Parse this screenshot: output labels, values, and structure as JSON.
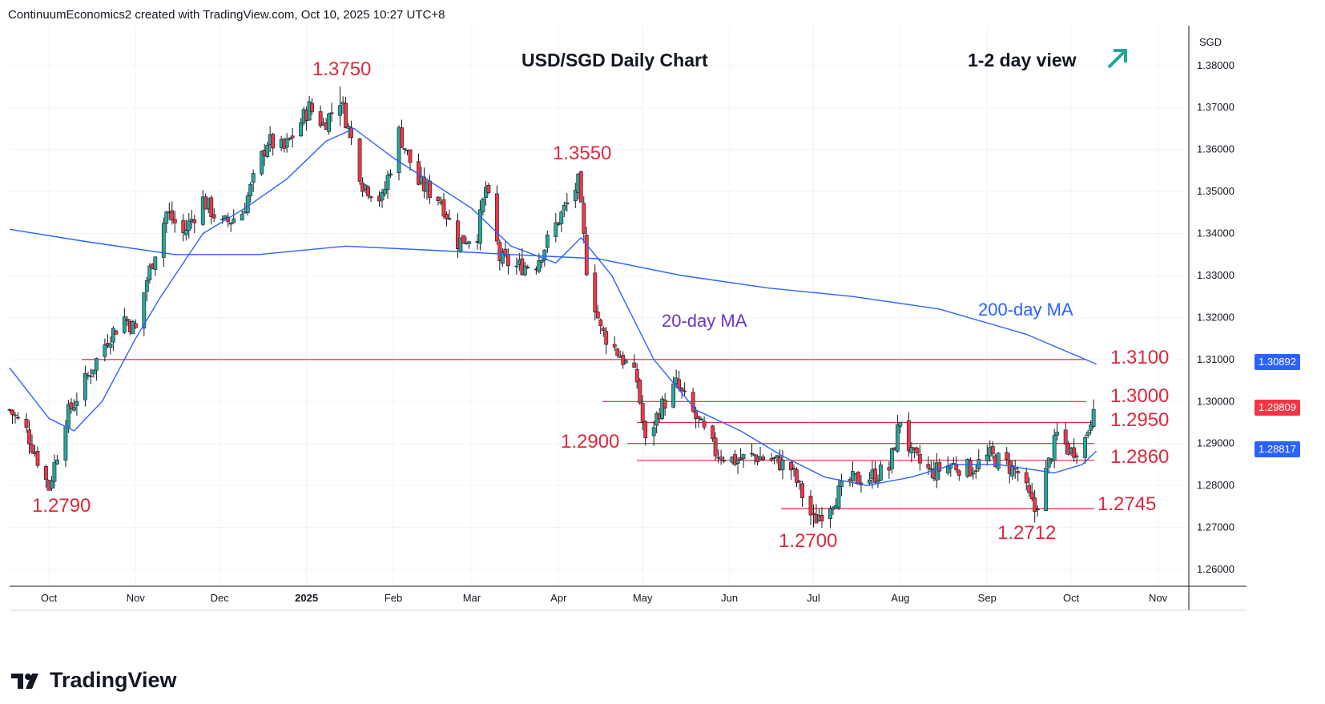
{
  "header": {
    "text": "ContinuumEconomics2 created with TradingView.com, Oct 10, 2025 10:27 UTC+8"
  },
  "chart_title": "USD/SGD Daily Chart",
  "view": {
    "label": "1-2 day view",
    "arrow_icon": "up-right-arrow-icon",
    "arrow_color": "#26a69a"
  },
  "axis": {
    "currency": "SGD",
    "y_ticks": [
      "1.38000",
      "1.37000",
      "1.36000",
      "1.35000",
      "1.34000",
      "1.33000",
      "1.32000",
      "1.31000",
      "1.30000",
      "1.29000",
      "1.28000",
      "1.27000",
      "1.26000"
    ],
    "x_ticks": [
      "Oct",
      "Nov",
      "Dec",
      "2025",
      "Feb",
      "Mar",
      "Apr",
      "May",
      "Jun",
      "Jul",
      "Aug",
      "Sep",
      "Oct",
      "Nov"
    ]
  },
  "price_boxes": {
    "ma200": {
      "text": "1.30892",
      "color": "#2962ff"
    },
    "last": {
      "text": "1.29809",
      "color": "#f23645"
    },
    "ma20": {
      "text": "1.28817",
      "color": "#2962ff"
    }
  },
  "annotations": {
    "high_1": "1.3750",
    "high_2": "1.3550",
    "low_1": "1.2790",
    "level_1290": "1.2900",
    "low_2": "1.2700",
    "low_3": "1.2712",
    "level_13100": "1.3100",
    "level_13000": "1.3000",
    "level_12950": "1.2950",
    "level_12860": "1.2860",
    "level_12745": "1.2745",
    "ma20_label": "20-day MA",
    "ma200_label": "200-day MA"
  },
  "footer": {
    "logo_icon": "tradingview-logo-icon",
    "brand": "TradingView"
  },
  "colors": {
    "up": "#26a69a",
    "down": "#f23645",
    "line": "#e0283c",
    "ma": "#2962ff"
  },
  "chart_data": {
    "type": "candlestick",
    "title": "USD/SGD Daily Chart",
    "ylabel": "SGD",
    "ylim": [
      1.256,
      1.3895
    ],
    "start_date": "2024-09-17",
    "x_range": [
      "2024-09-17",
      "2025-11-12"
    ],
    "horizontal_levels": [
      1.31,
      1.3,
      1.295,
      1.29,
      1.286,
      1.2745
    ],
    "last_price": 1.29809,
    "swing_points": [
      {
        "date": "2024-10-01",
        "value": 1.279
      },
      {
        "date": "2025-01-13",
        "value": 1.375
      },
      {
        "date": "2025-04-09",
        "value": 1.355
      },
      {
        "date": "2025-07-01",
        "value": 1.27
      },
      {
        "date": "2025-09-18",
        "value": 1.2712
      }
    ],
    "anchors": [
      [
        "2024-09-17",
        1.298
      ],
      [
        "2024-09-23",
        1.293
      ],
      [
        "2024-10-01",
        1.2795
      ],
      [
        "2024-10-07",
        1.296
      ],
      [
        "2024-10-15",
        1.306
      ],
      [
        "2024-10-22",
        1.315
      ],
      [
        "2024-10-28",
        1.32
      ],
      [
        "2024-11-01",
        1.317
      ],
      [
        "2024-11-05",
        1.329
      ],
      [
        "2024-11-12",
        1.345
      ],
      [
        "2024-11-18",
        1.34
      ],
      [
        "2024-11-25",
        1.348
      ],
      [
        "2024-12-02",
        1.342
      ],
      [
        "2024-12-09",
        1.345
      ],
      [
        "2024-12-18",
        1.362
      ],
      [
        "2024-12-24",
        1.36
      ],
      [
        "2025-01-02",
        1.37
      ],
      [
        "2025-01-07",
        1.366
      ],
      [
        "2025-01-13",
        1.372
      ],
      [
        "2025-01-16",
        1.365
      ],
      [
        "2025-01-21",
        1.352
      ],
      [
        "2025-01-28",
        1.348
      ],
      [
        "2025-02-03",
        1.364
      ],
      [
        "2025-02-10",
        1.352
      ],
      [
        "2025-02-18",
        1.348
      ],
      [
        "2025-02-24",
        1.338
      ],
      [
        "2025-03-03",
        1.34
      ],
      [
        "2025-03-06",
        1.351
      ],
      [
        "2025-03-11",
        1.334
      ],
      [
        "2025-03-17",
        1.332
      ],
      [
        "2025-03-24",
        1.333
      ],
      [
        "2025-03-31",
        1.342
      ],
      [
        "2025-04-08",
        1.352
      ],
      [
        "2025-04-11",
        1.332
      ],
      [
        "2025-04-16",
        1.317
      ],
      [
        "2025-04-23",
        1.311
      ],
      [
        "2025-04-29",
        1.305
      ],
      [
        "2025-05-02",
        1.29
      ],
      [
        "2025-05-07",
        1.298
      ],
      [
        "2025-05-13",
        1.304
      ],
      [
        "2025-05-20",
        1.296
      ],
      [
        "2025-05-27",
        1.288
      ],
      [
        "2025-06-03",
        1.286
      ],
      [
        "2025-06-10",
        1.287
      ],
      [
        "2025-06-17",
        1.286
      ],
      [
        "2025-06-23",
        1.284
      ],
      [
        "2025-07-01",
        1.2715
      ],
      [
        "2025-07-07",
        1.276
      ],
      [
        "2025-07-14",
        1.281
      ],
      [
        "2025-07-21",
        1.282
      ],
      [
        "2025-07-28",
        1.284
      ],
      [
        "2025-08-01",
        1.296
      ],
      [
        "2025-08-05",
        1.287
      ],
      [
        "2025-08-12",
        1.283
      ],
      [
        "2025-08-19",
        1.285
      ],
      [
        "2025-08-26",
        1.284
      ],
      [
        "2025-09-02",
        1.287
      ],
      [
        "2025-09-08",
        1.285
      ],
      [
        "2025-09-12",
        1.283
      ],
      [
        "2025-09-18",
        1.274
      ],
      [
        "2025-09-22",
        1.283
      ],
      [
        "2025-09-26",
        1.292
      ],
      [
        "2025-10-01",
        1.288
      ],
      [
        "2025-10-06",
        1.291
      ],
      [
        "2025-10-09",
        1.2985
      ]
    ],
    "ma20_points": [
      [
        "2024-09-17",
        1.308
      ],
      [
        "2024-10-01",
        1.296
      ],
      [
        "2024-10-10",
        1.293
      ],
      [
        "2024-10-20",
        1.3
      ],
      [
        "2024-11-01",
        1.315
      ],
      [
        "2024-11-10",
        1.325
      ],
      [
        "2024-11-25",
        1.34
      ],
      [
        "2024-12-10",
        1.346
      ],
      [
        "2024-12-25",
        1.353
      ],
      [
        "2025-01-08",
        1.362
      ],
      [
        "2025-01-18",
        1.365
      ],
      [
        "2025-02-01",
        1.358
      ],
      [
        "2025-02-15",
        1.352
      ],
      [
        "2025-03-01",
        1.346
      ],
      [
        "2025-03-15",
        1.337
      ],
      [
        "2025-03-31",
        1.333
      ],
      [
        "2025-04-09",
        1.339
      ],
      [
        "2025-04-20",
        1.33
      ],
      [
        "2025-05-05",
        1.31
      ],
      [
        "2025-05-20",
        1.298
      ],
      [
        "2025-06-05",
        1.293
      ],
      [
        "2025-06-20",
        1.287
      ],
      [
        "2025-07-05",
        1.282
      ],
      [
        "2025-07-20",
        1.28
      ],
      [
        "2025-08-05",
        1.282
      ],
      [
        "2025-08-20",
        1.285
      ],
      [
        "2025-09-05",
        1.285
      ],
      [
        "2025-09-15",
        1.284
      ],
      [
        "2025-09-25",
        1.283
      ],
      [
        "2025-10-05",
        1.285
      ],
      [
        "2025-10-10",
        1.2882
      ]
    ],
    "ma200_points": [
      [
        "2024-09-17",
        1.341
      ],
      [
        "2024-10-15",
        1.338
      ],
      [
        "2024-11-15",
        1.335
      ],
      [
        "2024-12-15",
        1.335
      ],
      [
        "2025-01-15",
        1.337
      ],
      [
        "2025-02-15",
        1.336
      ],
      [
        "2025-03-15",
        1.335
      ],
      [
        "2025-04-15",
        1.334
      ],
      [
        "2025-05-15",
        1.33
      ],
      [
        "2025-06-15",
        1.327
      ],
      [
        "2025-07-15",
        1.325
      ],
      [
        "2025-08-15",
        1.322
      ],
      [
        "2025-09-15",
        1.316
      ],
      [
        "2025-10-10",
        1.3089
      ]
    ]
  }
}
